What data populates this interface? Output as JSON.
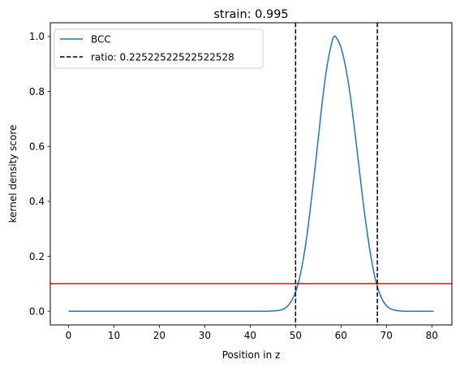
{
  "chart_data": {
    "type": "line",
    "title": "strain: 0.995",
    "xlabel": "Position in z",
    "ylabel": "kernel density score",
    "xlim": [
      -4.02,
      84.42
    ],
    "ylim": [
      -0.05,
      1.05
    ],
    "xticks": [
      0,
      10,
      20,
      30,
      40,
      50,
      60,
      70,
      80
    ],
    "xtick_labels": [
      "0",
      "10",
      "20",
      "30",
      "40",
      "50",
      "60",
      "70",
      "80"
    ],
    "yticks": [
      0.0,
      0.2,
      0.4,
      0.6,
      0.8,
      1.0
    ],
    "ytick_labels": [
      "0.0",
      "0.2",
      "0.4",
      "0.6",
      "0.8",
      "1.0"
    ],
    "grid": false,
    "legend_position": "upper-left",
    "series": [
      {
        "name": "BCC",
        "color": "#1f77b4",
        "style": "solid",
        "x": [
          0,
          5,
          10,
          15,
          20,
          25,
          30,
          35,
          40,
          42,
          44,
          45,
          46,
          47,
          48,
          49,
          50,
          51,
          52,
          53,
          54,
          55,
          56,
          57,
          58,
          58.5,
          59,
          60,
          61,
          62,
          63,
          64,
          65,
          66,
          67,
          68,
          69,
          70,
          71,
          72,
          73,
          74,
          75,
          76,
          78,
          80.4
        ],
        "y": [
          0.0,
          0.0,
          0.0,
          0.0,
          0.0,
          0.0,
          0.0,
          0.0,
          0.0,
          0.0,
          0.0,
          0.001,
          0.002,
          0.006,
          0.015,
          0.035,
          0.07,
          0.13,
          0.22,
          0.34,
          0.48,
          0.63,
          0.78,
          0.9,
          0.98,
          1.0,
          0.995,
          0.96,
          0.89,
          0.79,
          0.66,
          0.52,
          0.38,
          0.26,
          0.16,
          0.09,
          0.045,
          0.02,
          0.008,
          0.003,
          0.001,
          0.0,
          0.0,
          0.0,
          0.0,
          0.0
        ]
      },
      {
        "name": "ratio: 0.22522522522522528",
        "color": "#000000",
        "style": "dashed",
        "vlines": [
          50,
          68
        ]
      }
    ],
    "hlines": [
      {
        "y": 0.1,
        "color": "#ff0000"
      }
    ]
  }
}
